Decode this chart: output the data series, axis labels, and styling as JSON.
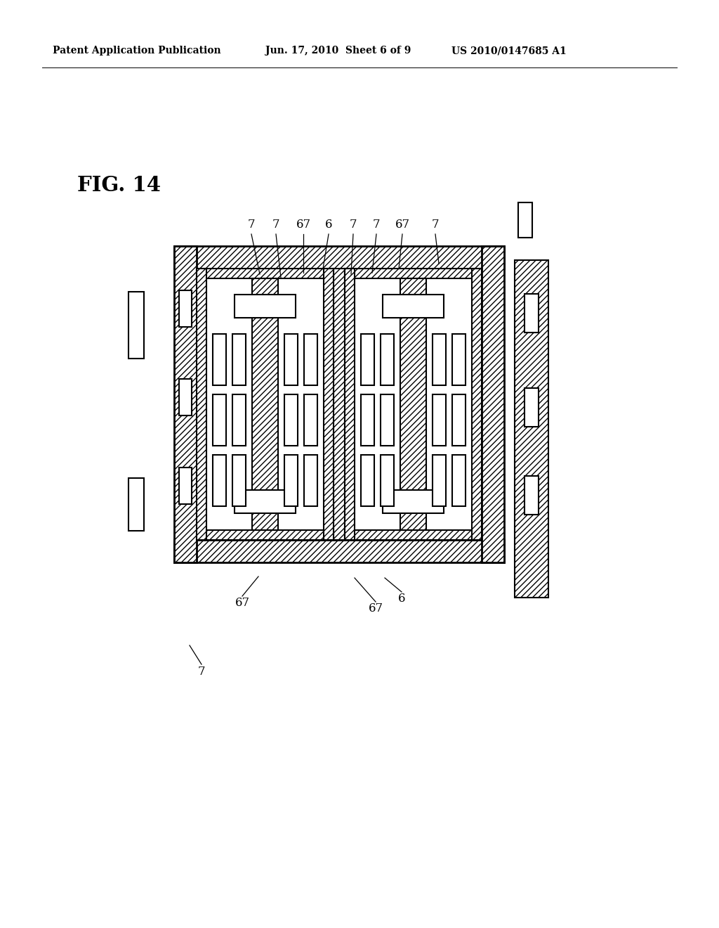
{
  "background_color": "#ffffff",
  "header_left": "Patent Application Publication",
  "header_mid": "Jun. 17, 2010  Sheet 6 of 9",
  "header_right": "US 2010/0147685 A1",
  "fig_label": "FIG. 14",
  "line_color": "#000000",
  "lw": 1.5,
  "tlw": 2.0
}
